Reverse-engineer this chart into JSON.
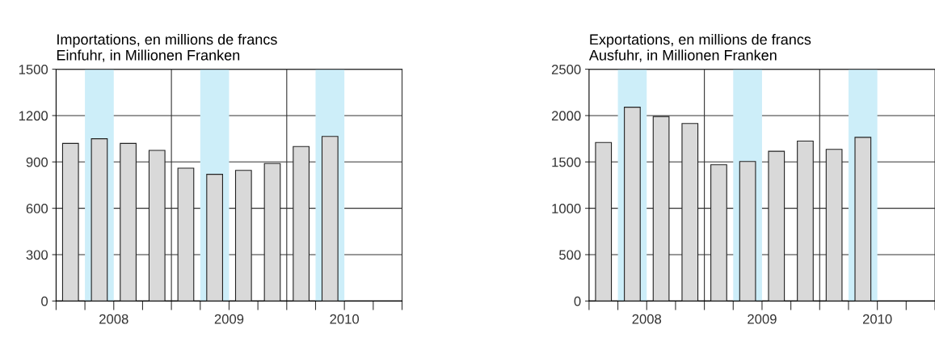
{
  "chart_data": [
    {
      "type": "bar",
      "title": "Importations, en millions de francs\nEinfuhr, in Millionen Franken",
      "x": [
        2008.125,
        2008.375,
        2008.625,
        2008.875,
        2009.125,
        2009.375,
        2009.625,
        2009.875,
        2010.125,
        2010.375
      ],
      "values": [
        1020,
        1050,
        1020,
        975,
        860,
        820,
        845,
        890,
        1000,
        1065
      ],
      "color": "#d9d9d9",
      "xlim": [
        2008,
        2011
      ],
      "xticks": [
        {
          "value": 2008,
          "label": null
        },
        {
          "value": 2008.25,
          "label": null
        },
        {
          "value": 2008.5,
          "label": "2008"
        },
        {
          "value": 2008.75,
          "label": null
        },
        {
          "value": 2009,
          "label": null
        },
        {
          "value": 2009.25,
          "label": null
        },
        {
          "value": 2009.5,
          "label": "2009"
        },
        {
          "value": 2009.75,
          "label": null
        },
        {
          "value": 2010,
          "label": null
        },
        {
          "value": 2010.25,
          "label": null
        },
        {
          "value": 2010.5,
          "label": "2010"
        },
        {
          "value": 2010.75,
          "label": null
        },
        {
          "value": 2011,
          "label": null
        }
      ],
      "ylim": [
        0,
        1500
      ],
      "yticks": [
        0,
        300,
        600,
        900,
        1200,
        1500
      ],
      "grid": "y",
      "bands": [
        {
          "axis": "x",
          "from": 2008.25,
          "to": 2008.5,
          "color": "#cdeef9"
        },
        {
          "axis": "x",
          "from": 2009.25,
          "to": 2009.5,
          "color": "#cdeef9"
        },
        {
          "axis": "x",
          "from": 2010.25,
          "to": 2010.5,
          "color": "#cdeef9"
        }
      ],
      "ref_lines": [
        {
          "axis": "x",
          "value": 2009,
          "color": "#333333"
        },
        {
          "axis": "x",
          "value": 2010,
          "color": "#333333"
        }
      ]
    },
    {
      "type": "bar",
      "title": "Exportations, en millions de francs\nAusfuhr, in Millionen Franken",
      "x": [
        2008.125,
        2008.375,
        2008.625,
        2008.875,
        2009.125,
        2009.375,
        2009.625,
        2009.875,
        2010.125,
        2010.375
      ],
      "values": [
        1710,
        2090,
        1990,
        1915,
        1470,
        1505,
        1615,
        1725,
        1635,
        1765
      ],
      "color": "#d9d9d9",
      "xlim": [
        2008,
        2011
      ],
      "xticks": [
        {
          "value": 2008,
          "label": null
        },
        {
          "value": 2008.25,
          "label": null
        },
        {
          "value": 2008.5,
          "label": "2008"
        },
        {
          "value": 2008.75,
          "label": null
        },
        {
          "value": 2009,
          "label": null
        },
        {
          "value": 2009.25,
          "label": null
        },
        {
          "value": 2009.5,
          "label": "2009"
        },
        {
          "value": 2009.75,
          "label": null
        },
        {
          "value": 2010,
          "label": null
        },
        {
          "value": 2010.25,
          "label": null
        },
        {
          "value": 2010.5,
          "label": "2010"
        },
        {
          "value": 2010.75,
          "label": null
        },
        {
          "value": 2011,
          "label": null
        }
      ],
      "ylim": [
        0,
        2500
      ],
      "yticks": [
        0,
        500,
        1000,
        1500,
        2000,
        2500
      ],
      "grid": "y",
      "bands": [
        {
          "axis": "x",
          "from": 2008.25,
          "to": 2008.5,
          "color": "#cdeef9"
        },
        {
          "axis": "x",
          "from": 2009.25,
          "to": 2009.5,
          "color": "#cdeef9"
        },
        {
          "axis": "x",
          "from": 2010.25,
          "to": 2010.5,
          "color": "#cdeef9"
        }
      ],
      "ref_lines": [
        {
          "axis": "x",
          "value": 2009,
          "color": "#333333"
        },
        {
          "axis": "x",
          "value": 2010,
          "color": "#333333"
        }
      ]
    }
  ]
}
